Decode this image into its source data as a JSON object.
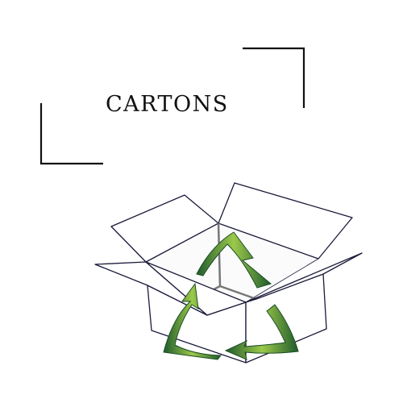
{
  "title": "CARTONS",
  "colors": {
    "text": "#111111",
    "bracket": "#111111",
    "box_stroke": "#1a1a3a",
    "box_fill": "#ffffff",
    "recycle_dark": "#1f5a2c",
    "recycle_light": "#9cc94a"
  },
  "icons": [
    "bracket-top-right-icon",
    "bracket-bottom-left-icon",
    "open-box-icon",
    "recycle-arrows-icon"
  ]
}
